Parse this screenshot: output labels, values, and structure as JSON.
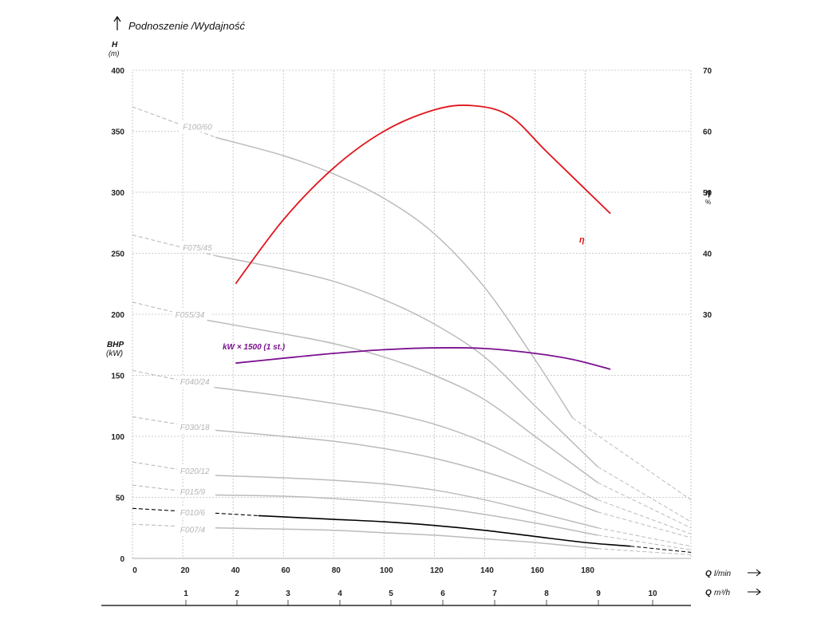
{
  "chart_data": {
    "type": "line",
    "title": "Podnoszenie /Wydajność",
    "y_axis": {
      "label": "H",
      "unit": "(m)",
      "range": [
        0,
        400
      ],
      "ticks": [
        "0",
        "50",
        "100",
        "150",
        "200",
        "250",
        "300",
        "350",
        "400"
      ]
    },
    "bhp_axis": {
      "label": "BHP",
      "unit": "(kW)"
    },
    "eta_axis": {
      "label": "η",
      "unit": "%",
      "ticks": [
        "30",
        "40",
        "50",
        "60",
        "70"
      ]
    },
    "x_axis_lmin": {
      "label": "Q",
      "unit": "l/min",
      "range": [
        0,
        222
      ],
      "ticks": [
        "0",
        "20",
        "40",
        "60",
        "80",
        "100",
        "120",
        "140",
        "160",
        "180"
      ]
    },
    "x_axis_m3h": {
      "label": "Q",
      "unit": "m³/h",
      "ticks": [
        "1",
        "2",
        "3",
        "4",
        "5",
        "6",
        "7",
        "8",
        "9",
        "10"
      ]
    },
    "grid": true,
    "series": [
      {
        "name": "F100/60",
        "color": "#bbbbbb",
        "label_x": 20,
        "label_y": 354,
        "dashed_start": [
          [
            0,
            370
          ],
          [
            33,
            345
          ]
        ],
        "solid": [
          [
            33,
            345
          ],
          [
            60,
            330
          ],
          [
            80,
            315
          ],
          [
            100,
            295
          ],
          [
            120,
            266
          ],
          [
            140,
            222
          ],
          [
            160,
            163
          ],
          [
            175,
            115
          ]
        ],
        "dashed_end": [
          [
            175,
            115
          ],
          [
            222,
            48
          ]
        ]
      },
      {
        "name": "F075/45",
        "color": "#bbbbbb",
        "label_x": 20,
        "label_y": 255,
        "dashed_start": [
          [
            0,
            265
          ],
          [
            33,
            248
          ]
        ],
        "solid": [
          [
            33,
            248
          ],
          [
            60,
            237
          ],
          [
            80,
            227
          ],
          [
            100,
            212
          ],
          [
            120,
            192
          ],
          [
            140,
            165
          ],
          [
            160,
            125
          ],
          [
            185,
            75
          ]
        ],
        "dashed_end": [
          [
            185,
            75
          ],
          [
            222,
            30
          ]
        ]
      },
      {
        "name": "F055/34",
        "color": "#bbbbbb",
        "label_x": 17,
        "label_y": 200,
        "dashed_start": [
          [
            0,
            210
          ],
          [
            30,
            195
          ]
        ],
        "solid": [
          [
            30,
            195
          ],
          [
            60,
            184
          ],
          [
            80,
            176
          ],
          [
            100,
            165
          ],
          [
            120,
            150
          ],
          [
            140,
            130
          ],
          [
            160,
            100
          ],
          [
            185,
            62
          ]
        ],
        "dashed_end": [
          [
            185,
            62
          ],
          [
            222,
            25
          ]
        ]
      },
      {
        "name": "F040/24",
        "color": "#bbbbbb",
        "label_x": 19,
        "label_y": 145,
        "dashed_start": [
          [
            0,
            154
          ],
          [
            33,
            140
          ]
        ],
        "solid": [
          [
            33,
            140
          ],
          [
            60,
            133
          ],
          [
            80,
            127
          ],
          [
            100,
            120
          ],
          [
            120,
            110
          ],
          [
            140,
            95
          ],
          [
            160,
            75
          ],
          [
            185,
            48
          ]
        ],
        "dashed_end": [
          [
            185,
            48
          ],
          [
            222,
            20
          ]
        ]
      },
      {
        "name": "F030/18",
        "color": "#bbbbbb",
        "label_x": 19,
        "label_y": 108,
        "dashed_start": [
          [
            0,
            116
          ],
          [
            33,
            105
          ]
        ],
        "solid": [
          [
            33,
            105
          ],
          [
            60,
            100
          ],
          [
            80,
            96
          ],
          [
            100,
            90
          ],
          [
            120,
            82
          ],
          [
            140,
            71
          ],
          [
            160,
            57
          ],
          [
            185,
            38
          ]
        ],
        "dashed_end": [
          [
            185,
            38
          ],
          [
            222,
            17
          ]
        ]
      },
      {
        "name": "F020/12",
        "color": "#bbbbbb",
        "label_x": 19,
        "label_y": 72,
        "dashed_start": [
          [
            0,
            79
          ],
          [
            33,
            68
          ]
        ],
        "solid": [
          [
            33,
            68
          ],
          [
            60,
            66
          ],
          [
            80,
            64
          ],
          [
            100,
            61
          ],
          [
            120,
            56
          ],
          [
            140,
            48
          ],
          [
            160,
            38
          ],
          [
            185,
            25
          ]
        ],
        "dashed_end": [
          [
            185,
            25
          ],
          [
            222,
            10
          ]
        ]
      },
      {
        "name": "F015/9",
        "color": "#bbbbbb",
        "label_x": 19,
        "label_y": 55,
        "dashed_start": [
          [
            0,
            60
          ],
          [
            33,
            52
          ]
        ],
        "solid": [
          [
            33,
            52
          ],
          [
            60,
            51
          ],
          [
            80,
            49
          ],
          [
            100,
            46
          ],
          [
            120,
            42
          ],
          [
            140,
            36
          ],
          [
            160,
            29
          ],
          [
            185,
            19
          ]
        ],
        "dashed_end": [
          [
            185,
            19
          ],
          [
            222,
            7
          ]
        ]
      },
      {
        "name": "F010/6",
        "color": "#000000",
        "label_x": 19,
        "label_y": 38,
        "dashed_start": [
          [
            0,
            41
          ],
          [
            50,
            35
          ]
        ],
        "solid": [
          [
            50,
            35
          ],
          [
            60,
            34
          ],
          [
            80,
            32
          ],
          [
            100,
            30
          ],
          [
            120,
            27
          ],
          [
            140,
            23
          ],
          [
            160,
            18
          ],
          [
            180,
            13
          ],
          [
            198,
            10
          ]
        ],
        "dashed_end": [
          [
            198,
            10
          ],
          [
            222,
            5
          ]
        ]
      },
      {
        "name": "F007/4",
        "color": "#bbbbbb",
        "label_x": 19,
        "label_y": 24,
        "dashed_start": [
          [
            0,
            28
          ],
          [
            33,
            25
          ]
        ],
        "solid": [
          [
            33,
            25
          ],
          [
            60,
            24
          ],
          [
            80,
            23
          ],
          [
            100,
            21
          ],
          [
            120,
            19
          ],
          [
            140,
            16
          ],
          [
            160,
            13
          ],
          [
            185,
            8
          ]
        ],
        "dashed_end": [
          [
            185,
            8
          ],
          [
            222,
            3
          ]
        ]
      }
    ],
    "efficiency_curve": {
      "name": "η",
      "color": "#e2141c",
      "points": [
        [
          41,
          35
        ],
        [
          60,
          45.5
        ],
        [
          80,
          54
        ],
        [
          100,
          60
        ],
        [
          120,
          63.5
        ],
        [
          135,
          64.2
        ],
        [
          150,
          62.5
        ],
        [
          165,
          56.5
        ],
        [
          190,
          46.5
        ]
      ]
    },
    "power_curve": {
      "name": "kW × 1500 (1 st.)",
      "color": "#7b1190",
      "points": [
        [
          41,
          160
        ],
        [
          60,
          164
        ],
        [
          80,
          168
        ],
        [
          100,
          171
        ],
        [
          120,
          172.5
        ],
        [
          140,
          172
        ],
        [
          160,
          168
        ],
        [
          175,
          163
        ],
        [
          190,
          155
        ]
      ]
    }
  }
}
